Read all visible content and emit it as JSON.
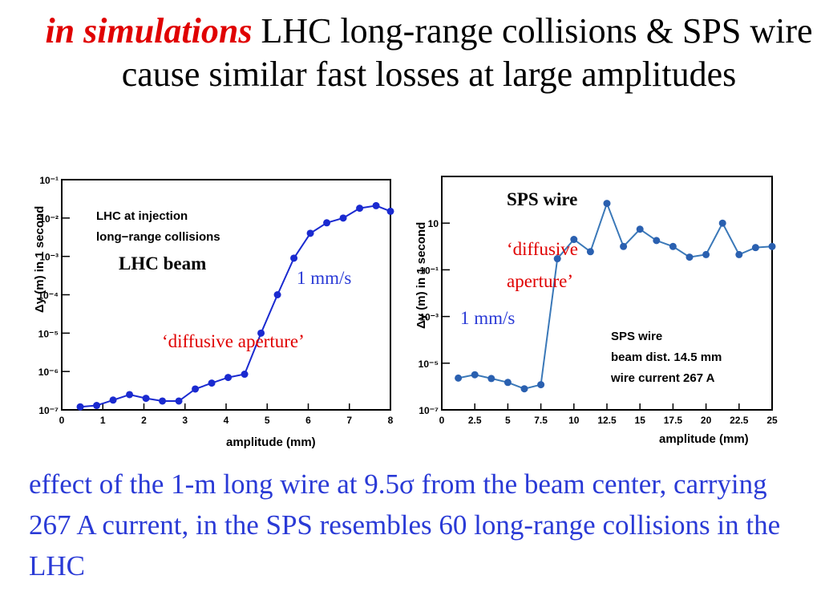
{
  "title": {
    "highlight": "in simulations",
    "rest": " LHC long-range collisions & SPS wire cause similar fast losses at large amplitudes"
  },
  "caption": {
    "before": "effect of the 1-m long wire at 9.5",
    "sigma": "σ",
    "after": " from the beam center, carrying 267 A current, in the SPS resembles 60 long-range collisions in the LHC"
  },
  "colors": {
    "accent_red": "#e00000",
    "caption_blue": "#2a3ad6",
    "lhc_line": "#1a2ad0",
    "sps_line": "#3a78b8",
    "sps_point": "#2a60b0"
  },
  "chart_data": [
    {
      "type": "line",
      "yscale": "log",
      "xlabel": "amplitude (mm)",
      "ylabel": "Δy (m) in 1 second",
      "xlim": [
        0,
        8
      ],
      "ylim": [
        1e-07,
        0.1
      ],
      "xticks": [
        0,
        1,
        2,
        3,
        4,
        5,
        6,
        7,
        8
      ],
      "yticks": [
        {
          "value": 1e-07,
          "label": "10⁻⁷"
        },
        {
          "value": 1e-06,
          "label": "10⁻⁶"
        },
        {
          "value": 1e-05,
          "label": "10⁻⁵"
        },
        {
          "value": 0.0001,
          "label": "10⁻⁴"
        },
        {
          "value": 0.001,
          "label": "10⁻³"
        },
        {
          "value": 0.01,
          "label": "10⁻²"
        },
        {
          "value": 0.1,
          "label": "10⁻¹"
        }
      ],
      "legend_lines": [
        "LHC at injection",
        "long−range collisions"
      ],
      "annotations": {
        "beam": "LHC beam",
        "speed": "1 mm/s",
        "aperture": "‘diffusive aperture’"
      },
      "series": [
        {
          "x": [
            0.45,
            0.85,
            1.25,
            1.65,
            2.05,
            2.45,
            2.85,
            3.25,
            3.65,
            4.05,
            4.45,
            4.85,
            5.25,
            5.65,
            6.05,
            6.45,
            6.85,
            7.25,
            7.65,
            8.0
          ],
          "y": [
            1.2e-07,
            1.3e-07,
            1.8e-07,
            2.5e-07,
            2e-07,
            1.7e-07,
            1.7e-07,
            3.5e-07,
            5e-07,
            7e-07,
            8.5e-07,
            1e-05,
            0.0001,
            0.0009,
            0.004,
            0.0075,
            0.01,
            0.018,
            0.021,
            0.015
          ]
        }
      ]
    },
    {
      "type": "line",
      "yscale": "log",
      "xlabel": "amplitude (mm)",
      "ylabel": "Δy (m) in 1 second",
      "xlim": [
        0,
        25
      ],
      "ylim": [
        1e-07,
        1000
      ],
      "xticks": [
        {
          "value": 0,
          "label": "0"
        },
        {
          "value": 2.5,
          "label": "2.5"
        },
        {
          "value": 5,
          "label": "5"
        },
        {
          "value": 7.5,
          "label": "7.5"
        },
        {
          "value": 10,
          "label": "10"
        },
        {
          "value": 12.5,
          "label": "12.5"
        },
        {
          "value": 15,
          "label": "15"
        },
        {
          "value": 17.5,
          "label": "17.5"
        },
        {
          "value": 20,
          "label": "20"
        },
        {
          "value": 22.5,
          "label": "22.5"
        },
        {
          "value": 25,
          "label": "25"
        }
      ],
      "yticks": [
        {
          "value": 1e-07,
          "label": "10⁻⁷"
        },
        {
          "value": 1e-05,
          "label": "10⁻⁵"
        },
        {
          "value": 0.001,
          "label": "10⁻³"
        },
        {
          "value": 0.1,
          "label": "10⁻¹"
        },
        {
          "value": 10,
          "label": "10"
        }
      ],
      "legend_lines": [
        "SPS wire",
        "beam dist. 14.5 mm",
        "wire current 267 A"
      ],
      "annotations": {
        "label": "SPS wire",
        "aperture_1": "‘diffusive",
        "aperture_2": "aperture’",
        "speed": "1 mm/s"
      },
      "series": [
        {
          "x": [
            1.25,
            2.5,
            3.75,
            5.0,
            6.25,
            7.5,
            8.75,
            10.0,
            11.25,
            12.5,
            13.75,
            15.0,
            16.25,
            17.5,
            18.75,
            20.0,
            21.25,
            22.5,
            23.75,
            25.0
          ],
          "y": [
            2.3e-06,
            3.2e-06,
            2.2e-06,
            1.5e-06,
            8e-07,
            1.2e-06,
            0.3,
            2.0,
            0.6,
            70,
            1.0,
            5.5,
            1.8,
            1.0,
            0.35,
            0.45,
            10,
            0.45,
            0.9,
            1.0
          ]
        }
      ]
    }
  ]
}
